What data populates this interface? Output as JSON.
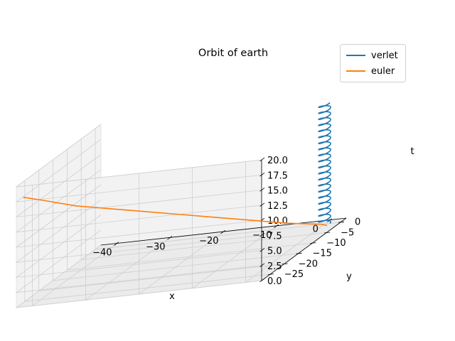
{
  "chart_data": {
    "type": "line",
    "title": "Orbit of earth",
    "xlabel": "x",
    "ylabel": "y",
    "zlabel": "t",
    "xlim": [
      -43,
      3
    ],
    "ylim": [
      -28,
      2
    ],
    "zlim": [
      0,
      20
    ],
    "x_ticks": [
      -40,
      -30,
      -20,
      -10,
      0
    ],
    "y_ticks": [
      -25,
      -20,
      -15,
      -10,
      -5,
      0
    ],
    "z_ticks": [
      "0.0",
      "2.5",
      "5.0",
      "7.5",
      "10.0",
      "12.5",
      "15.0",
      "17.5",
      "20.0"
    ],
    "legend_position": "upper right",
    "grid": true,
    "series": [
      {
        "name": "verlet",
        "color": "#1f77b4",
        "kind": "helix",
        "center_x": 0.0,
        "center_y": 0.0,
        "radius": 1.0,
        "turns": 20,
        "t_range": [
          0,
          20
        ]
      },
      {
        "name": "euler",
        "color": "#ff7f0e",
        "kind": "path",
        "x": [
          1.0,
          0.0,
          -5.0,
          -10.0,
          -15.0,
          -20.0,
          -25.0,
          -30.0,
          -35.0,
          -40.0,
          -42.5
        ],
        "y": [
          -1.0,
          -1.0,
          -4.0,
          -7.0,
          -10.0,
          -13.0,
          -16.0,
          -19.0,
          -22.0,
          -25.0,
          -26.5
        ],
        "t": [
          0.0,
          0.3,
          2.0,
          4.0,
          6.0,
          8.0,
          10.0,
          12.0,
          14.0,
          16.5,
          17.7
        ]
      }
    ]
  }
}
